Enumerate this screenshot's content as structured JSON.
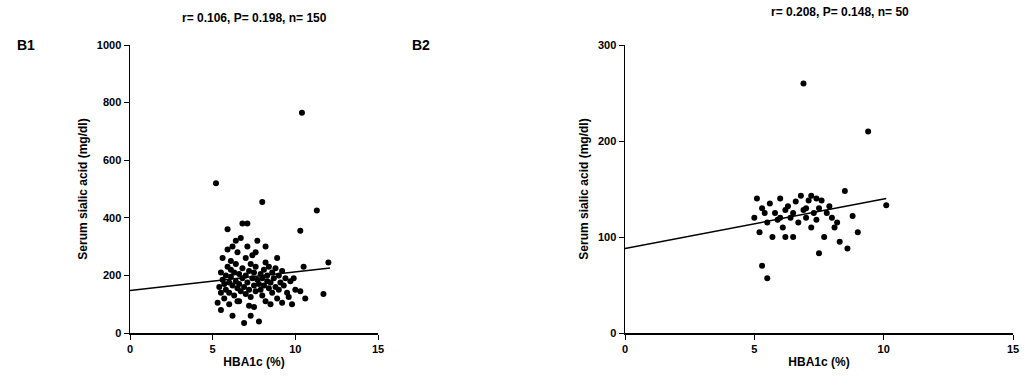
{
  "chart_data": [
    {
      "type": "scatter",
      "title": "r= 0.106, P= 0.198, n= 150",
      "annotations": [
        "B1"
      ],
      "xlabel": "HBA1c (%)",
      "ylabel": "Serum sialic acid (mg/dl)",
      "xlim": [
        0,
        15
      ],
      "xticks": [
        0,
        5,
        10,
        15
      ],
      "ylim": [
        0,
        1000
      ],
      "yticks": [
        0,
        200,
        400,
        600,
        800,
        1000
      ],
      "grid": false,
      "series": [
        {
          "type": "scatter",
          "marker": "circle",
          "color": "#000000",
          "x": [
            5.2,
            5.3,
            5.4,
            5.5,
            5.5,
            5.6,
            5.6,
            5.7,
            5.7,
            5.8,
            5.8,
            5.9,
            5.9,
            6.0,
            6.0,
            6.0,
            6.1,
            6.1,
            6.2,
            6.2,
            6.2,
            6.3,
            6.3,
            6.4,
            6.4,
            6.5,
            6.5,
            6.5,
            6.6,
            6.6,
            6.7,
            6.7,
            6.8,
            6.8,
            6.8,
            6.9,
            6.9,
            7.0,
            7.0,
            7.0,
            7.1,
            7.1,
            7.1,
            7.2,
            7.2,
            7.3,
            7.3,
            7.4,
            7.4,
            7.5,
            7.5,
            7.5,
            7.6,
            7.6,
            7.7,
            7.7,
            7.8,
            7.8,
            7.9,
            7.9,
            8.0,
            8.0,
            8.0,
            8.1,
            8.1,
            8.2,
            8.2,
            8.3,
            8.3,
            8.4,
            8.4,
            8.5,
            8.5,
            8.6,
            8.6,
            8.7,
            8.8,
            8.8,
            8.9,
            9.0,
            9.0,
            9.1,
            9.2,
            9.2,
            9.3,
            9.4,
            9.5,
            9.6,
            9.7,
            9.8,
            10.0,
            10.3,
            10.3,
            10.4,
            10.5,
            10.6,
            11.3,
            11.7,
            12.0,
            5.9,
            6.4,
            7.2,
            7.6,
            6.1,
            8.9,
            9.9,
            7.3,
            6.6,
            5.5,
            8.2
          ],
          "values": [
            520,
            105,
            160,
            210,
            140,
            185,
            260,
            120,
            170,
            200,
            150,
            360,
            230,
            175,
            100,
            140,
            195,
            250,
            165,
            300,
            60,
            210,
            130,
            180,
            240,
            155,
            280,
            110,
            205,
            170,
            330,
            145,
            380,
            190,
            225,
            35,
            160,
            260,
            135,
            200,
            380,
            175,
            300,
            215,
            150,
            240,
            125,
            190,
            270,
            165,
            210,
            90,
            145,
            230,
            185,
            320,
            170,
            40,
            205,
            150,
            455,
            190,
            130,
            220,
            165,
            245,
            110,
            180,
            200,
            155,
            230,
            175,
            100,
            210,
            140,
            190,
            160,
            225,
            120,
            200,
            150,
            175,
            105,
            215,
            165,
            190,
            140,
            125,
            180,
            100,
            150,
            355,
            145,
            765,
            230,
            120,
            425,
            135,
            245,
            290,
            320,
            95,
            280,
            220,
            260,
            190,
            60,
            110,
            80,
            300
          ]
        },
        {
          "type": "line",
          "color": "#000000",
          "line_style": "solid",
          "x": [
            0,
            12.1
          ],
          "values": [
            148,
            226
          ]
        }
      ]
    },
    {
      "type": "scatter",
      "title": "r= 0.208, P= 0.148, n= 50",
      "annotations": [
        "B2"
      ],
      "xlabel": "HBA1c (%)",
      "ylabel": "Serum sialic acid (mg/dl)",
      "xlim": [
        0,
        15
      ],
      "xticks": [
        0,
        5,
        10,
        15
      ],
      "ylim": [
        0,
        300
      ],
      "yticks": [
        0,
        100,
        200,
        300
      ],
      "grid": false,
      "series": [
        {
          "type": "scatter",
          "marker": "circle",
          "color": "#000000",
          "x": [
            5.0,
            5.1,
            5.2,
            5.3,
            5.3,
            5.4,
            5.5,
            5.5,
            5.6,
            5.7,
            5.8,
            5.9,
            6.0,
            6.0,
            6.1,
            6.2,
            6.3,
            6.4,
            6.5,
            6.5,
            6.6,
            6.7,
            6.8,
            6.9,
            6.9,
            7.0,
            7.0,
            7.1,
            7.2,
            7.2,
            7.3,
            7.4,
            7.5,
            7.5,
            7.6,
            7.7,
            7.8,
            7.9,
            8.0,
            8.1,
            8.2,
            8.3,
            8.5,
            8.6,
            8.8,
            9.0,
            9.4,
            10.1,
            7.4,
            6.2
          ],
          "values": [
            120,
            140,
            105,
            70,
            130,
            125,
            57,
            115,
            135,
            100,
            125,
            118,
            120,
            140,
            110,
            128,
            132,
            120,
            100,
            125,
            137,
            115,
            143,
            260,
            128,
            130,
            120,
            138,
            110,
            143,
            125,
            118,
            83,
            130,
            138,
            100,
            125,
            132,
            120,
            110,
            115,
            95,
            148,
            88,
            122,
            105,
            210,
            133,
            140,
            100
          ]
        },
        {
          "type": "line",
          "color": "#000000",
          "line_style": "solid",
          "x": [
            0,
            10.1
          ],
          "values": [
            88,
            140
          ]
        }
      ]
    }
  ]
}
